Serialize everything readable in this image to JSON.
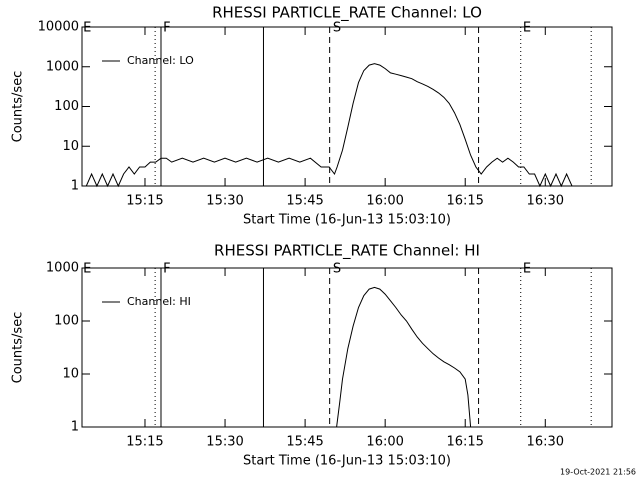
{
  "chart_data": [
    {
      "type": "line",
      "title": "RHESSI PARTICLE_RATE Channel: LO",
      "x_label": "Start Time (16-Jun-13 15:03:10)",
      "y_label": "Counts/sec",
      "x": [
        4,
        5,
        6,
        7,
        8,
        9,
        10,
        11,
        12,
        13,
        14,
        15,
        16,
        17,
        18,
        19,
        20,
        22,
        24,
        26,
        28,
        30,
        32,
        34,
        36,
        38,
        40,
        42,
        44,
        46,
        48,
        49.5,
        50.5,
        51,
        52,
        53,
        54,
        55,
        56,
        57,
        58,
        59,
        60,
        61,
        62,
        63,
        64,
        65,
        66,
        67,
        68,
        69,
        70,
        71,
        72,
        73,
        74,
        75,
        76,
        77,
        78,
        79,
        80,
        81,
        82,
        83,
        84,
        85,
        86,
        87,
        88,
        89,
        90,
        91,
        92,
        93,
        94,
        95,
        96
      ],
      "series": [
        {
          "name": "Channel: LO",
          "color": "#000000",
          "values": [
            1,
            2,
            1,
            2,
            1,
            2,
            1,
            2,
            3,
            2,
            3,
            3,
            4,
            4,
            5,
            5,
            4,
            5,
            4,
            5,
            4,
            5,
            4,
            5,
            4,
            5,
            4,
            5,
            4,
            5,
            3,
            3,
            2,
            3,
            8,
            30,
            120,
            400,
            800,
            1100,
            1200,
            1100,
            900,
            700,
            650,
            600,
            550,
            500,
            420,
            370,
            320,
            270,
            220,
            170,
            120,
            70,
            35,
            15,
            6,
            3,
            2,
            3,
            4,
            5,
            4,
            5,
            4,
            3,
            3,
            2,
            2,
            1,
            2,
            1,
            2,
            1,
            2,
            1,
            1
          ]
        }
      ],
      "xlim": [
        3.2,
        102.5
      ],
      "xticks": [
        {
          "value": 15,
          "label": "15:15"
        },
        {
          "value": 30,
          "label": "15:30"
        },
        {
          "value": 45,
          "label": "15:45"
        },
        {
          "value": 60,
          "label": "16:00"
        },
        {
          "value": 75,
          "label": "16:15"
        },
        {
          "value": 90,
          "label": "16:30"
        }
      ],
      "ylim": [
        1,
        10000
      ],
      "yticks": [
        1,
        10,
        100,
        1000,
        10000
      ],
      "log_y": true,
      "legend": "upper left",
      "vlines": [
        {
          "x": 16.9,
          "style": "dotted"
        },
        {
          "x": 18.0,
          "style": "solid"
        },
        {
          "x": 37.2,
          "style": "solid"
        },
        {
          "x": 49.6,
          "style": "dashed"
        },
        {
          "x": 77.5,
          "style": "dashed"
        },
        {
          "x": 85.4,
          "style": "dotted"
        },
        {
          "x": 98.6,
          "style": "dotted"
        }
      ],
      "annotations": [
        {
          "text": "E",
          "x": 3.4
        },
        {
          "text": "F",
          "x": 18.4
        },
        {
          "text": "S",
          "x": 50.2
        },
        {
          "text": "E",
          "x": 85.8
        }
      ]
    },
    {
      "type": "line",
      "title": "RHESSI PARTICLE_RATE Channel: HI",
      "x_label": "Start Time (16-Jun-13 15:03:10)",
      "y_label": "Counts/sec",
      "x": [
        50.9,
        51.5,
        52,
        53,
        54,
        55,
        56,
        57,
        58,
        59,
        60,
        61,
        62,
        63,
        64,
        65,
        66,
        67,
        68,
        69,
        70,
        71,
        72,
        73,
        74,
        75,
        75.5,
        76
      ],
      "series": [
        {
          "name": "Channel: HI",
          "color": "#000000",
          "values": [
            1,
            3,
            8,
            30,
            80,
            180,
            300,
            400,
            430,
            400,
            320,
            240,
            180,
            130,
            100,
            70,
            50,
            38,
            30,
            24,
            20,
            17,
            15,
            13,
            11,
            8,
            4,
            1
          ]
        }
      ],
      "xlim": [
        3.2,
        102.5
      ],
      "xticks": [
        {
          "value": 15,
          "label": "15:15"
        },
        {
          "value": 30,
          "label": "15:30"
        },
        {
          "value": 45,
          "label": "15:45"
        },
        {
          "value": 60,
          "label": "16:00"
        },
        {
          "value": 75,
          "label": "16:15"
        },
        {
          "value": 90,
          "label": "16:30"
        }
      ],
      "ylim": [
        1,
        1000
      ],
      "yticks": [
        1,
        10,
        100,
        1000
      ],
      "log_y": true,
      "legend": "upper left",
      "vlines": [
        {
          "x": 16.9,
          "style": "dotted"
        },
        {
          "x": 18.0,
          "style": "solid"
        },
        {
          "x": 37.2,
          "style": "solid"
        },
        {
          "x": 49.6,
          "style": "dashed"
        },
        {
          "x": 77.5,
          "style": "dashed"
        },
        {
          "x": 85.4,
          "style": "dotted"
        },
        {
          "x": 98.6,
          "style": "dotted"
        }
      ],
      "annotations": [
        {
          "text": "E",
          "x": 3.4
        },
        {
          "text": "F",
          "x": 18.4
        },
        {
          "text": "S",
          "x": 50.2
        },
        {
          "text": "E",
          "x": 85.8
        }
      ]
    }
  ],
  "footer": "19-Oct-2021 21:56"
}
